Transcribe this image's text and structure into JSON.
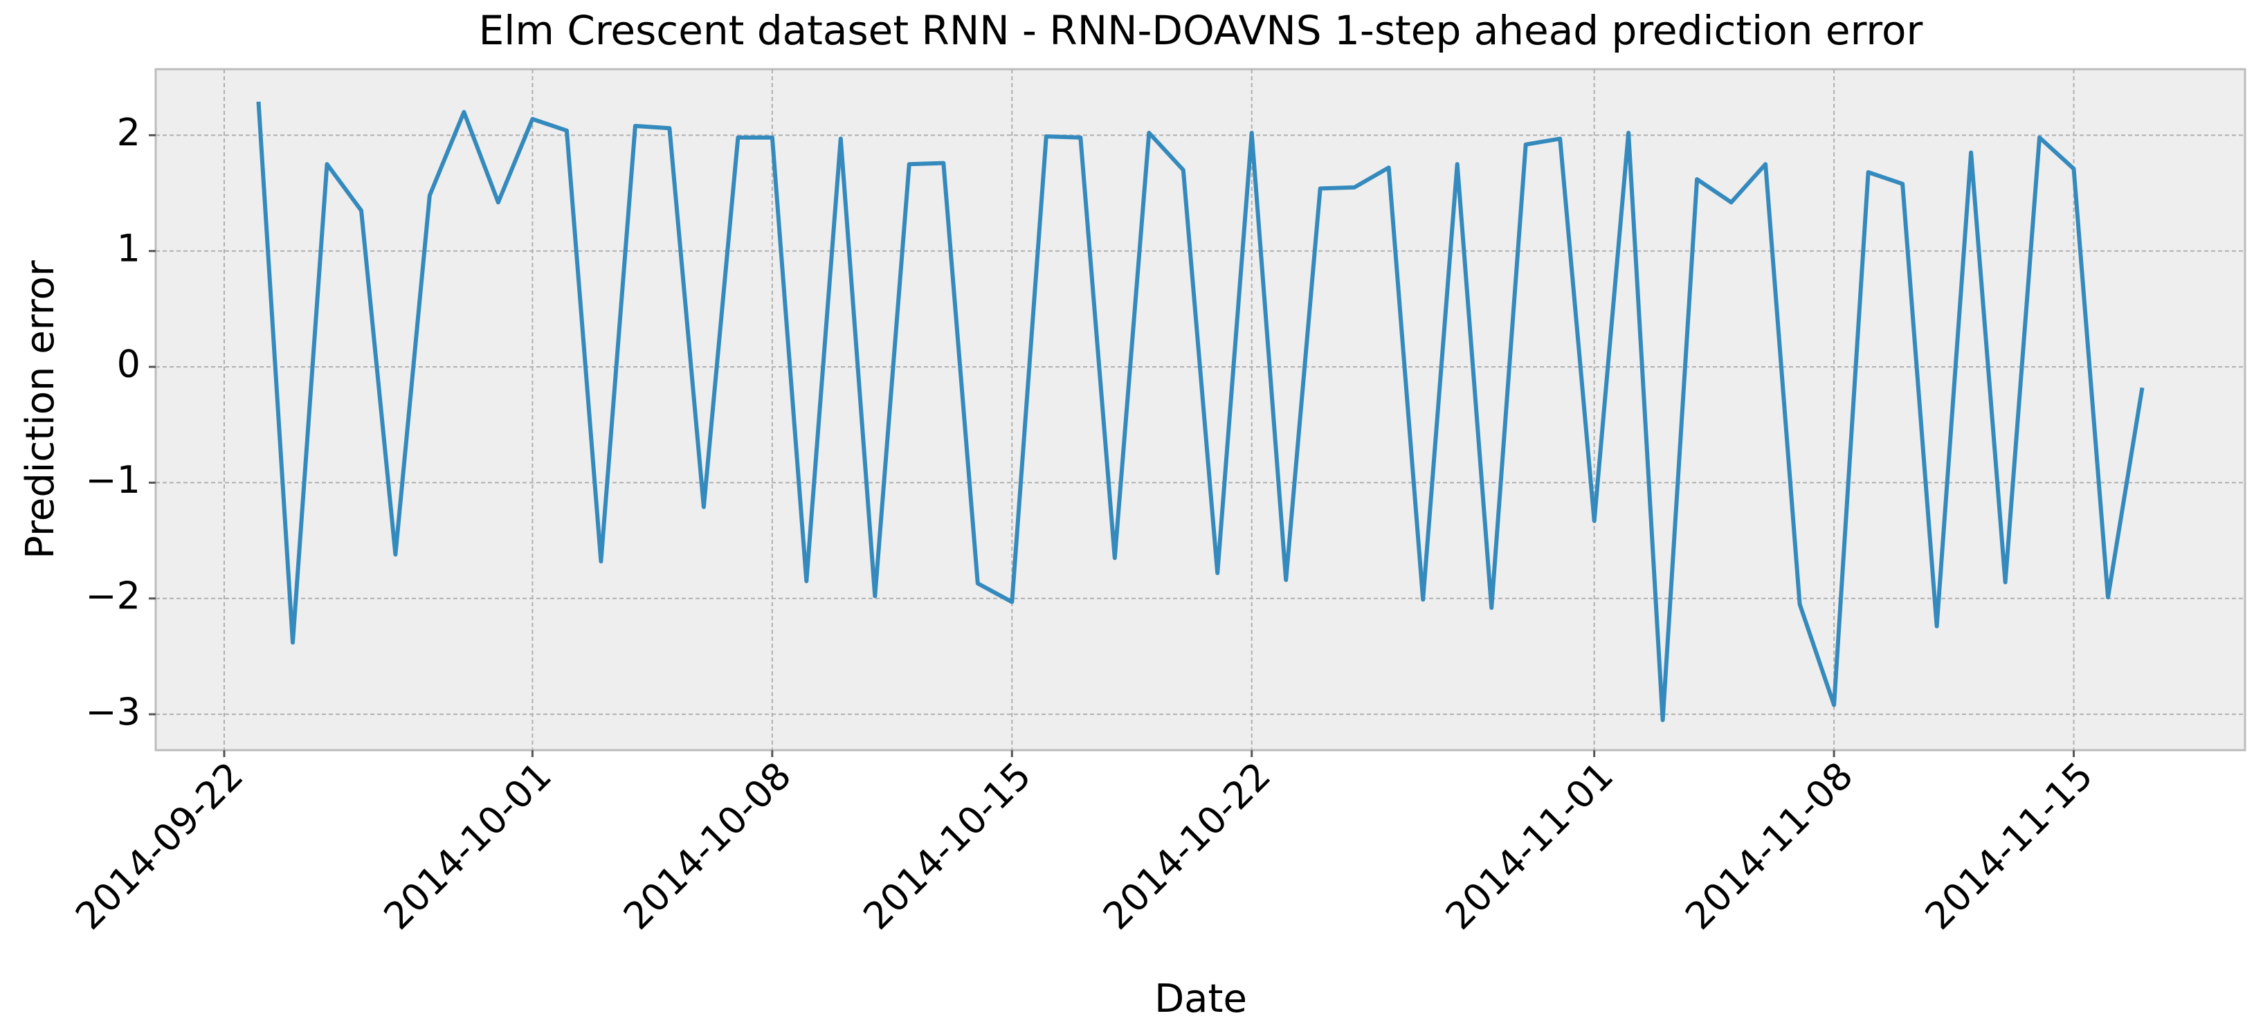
{
  "chart_data": {
    "type": "line",
    "title": "Elm Crescent dataset RNN - RNN-DOAVNS 1-step ahead prediction error",
    "x_label": "Date",
    "y_label": "Prediction error",
    "color": "#348abd",
    "grid": true,
    "x": [
      "2014-09-23",
      "2014-09-24",
      "2014-09-25",
      "2014-09-26",
      "2014-09-27",
      "2014-09-28",
      "2014-09-29",
      "2014-09-30",
      "2014-10-01",
      "2014-10-02",
      "2014-10-03",
      "2014-10-04",
      "2014-10-05",
      "2014-10-06",
      "2014-10-07",
      "2014-10-08",
      "2014-10-09",
      "2014-10-10",
      "2014-10-11",
      "2014-10-12",
      "2014-10-13",
      "2014-10-14",
      "2014-10-15",
      "2014-10-16",
      "2014-10-17",
      "2014-10-18",
      "2014-10-19",
      "2014-10-20",
      "2014-10-21",
      "2014-10-22",
      "2014-10-23",
      "2014-10-24",
      "2014-10-25",
      "2014-10-26",
      "2014-10-27",
      "2014-10-28",
      "2014-10-29",
      "2014-10-30",
      "2014-10-31",
      "2014-11-01",
      "2014-11-02",
      "2014-11-03",
      "2014-11-04",
      "2014-11-05",
      "2014-11-06",
      "2014-11-07",
      "2014-11-08",
      "2014-11-09",
      "2014-11-10",
      "2014-11-11",
      "2014-11-12",
      "2014-11-13",
      "2014-11-14",
      "2014-11-15",
      "2014-11-16",
      "2014-11-17"
    ],
    "values": [
      2.29,
      -2.38,
      1.75,
      1.35,
      -1.62,
      1.48,
      2.2,
      1.42,
      2.14,
      2.04,
      -1.68,
      2.08,
      2.06,
      -1.21,
      1.98,
      1.98,
      -1.85,
      1.97,
      -1.98,
      1.75,
      1.76,
      -1.87,
      -2.03,
      1.99,
      1.98,
      -1.65,
      2.02,
      1.7,
      -1.78,
      2.02,
      -1.84,
      1.54,
      1.55,
      1.72,
      -2.01,
      1.75,
      -2.08,
      1.92,
      1.97,
      -1.33,
      2.02,
      -3.05,
      1.62,
      1.42,
      1.75,
      -2.05,
      -2.92,
      1.68,
      1.58,
      -2.24,
      1.85,
      -1.86,
      1.98,
      1.71,
      -1.99,
      -0.18
    ],
    "xlim": [
      "2014-09-20",
      "2014-11-20"
    ],
    "xticks": [
      "2014-09-22",
      "2014-10-01",
      "2014-10-08",
      "2014-10-15",
      "2014-10-22",
      "2014-11-01",
      "2014-11-08",
      "2014-11-15"
    ],
    "ylim": [
      -3.31,
      2.57
    ],
    "yticks": [
      {
        "value": -3,
        "label": "−3"
      },
      {
        "value": -2,
        "label": "−2"
      },
      {
        "value": -1,
        "label": "−1"
      },
      0,
      1,
      2
    ]
  }
}
